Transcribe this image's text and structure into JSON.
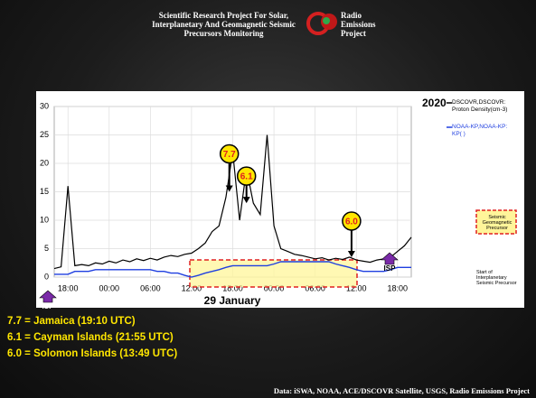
{
  "header": {
    "title": "Scientific Research Project For Solar, Interplanetary And Geomagnetic Seismic Precursors Monitoring",
    "project": "Radio Emissions Project"
  },
  "chart_data": {
    "type": "line",
    "year": "2020",
    "x_label": "29 January",
    "x": [
      0,
      1,
      2,
      3,
      4,
      5,
      6,
      7,
      8,
      9,
      10,
      11,
      12,
      13,
      14,
      15,
      16,
      17,
      18,
      19,
      20,
      21,
      22,
      23,
      24,
      25,
      26,
      27,
      28,
      29,
      30,
      31,
      32,
      33,
      34,
      35,
      36,
      37,
      38,
      39,
      40,
      41,
      42,
      43,
      44,
      45,
      46,
      47,
      48,
      49,
      50,
      51,
      52
    ],
    "xlim": [
      0,
      52
    ],
    "xticks": [
      {
        "value": 2,
        "label": "18:00"
      },
      {
        "value": 8,
        "label": "00:00"
      },
      {
        "value": 14,
        "label": "06:00"
      },
      {
        "value": 20,
        "label": "12:00"
      },
      {
        "value": 26,
        "label": "18:00"
      },
      {
        "value": 32,
        "label": "00:00"
      },
      {
        "value": 38,
        "label": "06:00"
      },
      {
        "value": 44,
        "label": "12:00"
      },
      {
        "value": 50,
        "label": "18:00"
      }
    ],
    "ylim": [
      0,
      30
    ],
    "yticks": [
      0,
      5,
      10,
      15,
      20,
      25,
      30
    ],
    "grid": true,
    "series": [
      {
        "name": "DSCOVR,DSCOVR: Proton Density(cm-3)",
        "color": "#000000",
        "values": [
          1.5,
          1.8,
          16,
          2,
          2.2,
          2,
          2.5,
          2.3,
          2.8,
          2.5,
          3,
          2.7,
          3.2,
          2.9,
          3.3,
          3,
          3.5,
          3.8,
          3.6,
          4,
          4.2,
          5,
          6,
          8,
          9,
          14,
          22,
          10,
          19,
          13,
          11,
          25,
          9,
          5,
          4.5,
          4,
          3.8,
          3.5,
          3.2,
          3.4,
          3,
          3.3,
          3.1,
          3.5,
          3,
          2.8,
          2.6,
          3,
          3.2,
          3.5,
          4.5,
          5.5,
          7
        ]
      },
      {
        "name": "NOAA-KP,NOAA-KP: KP( )",
        "color": "#1f3fe0",
        "values": [
          0.5,
          0.5,
          0.5,
          1,
          1,
          1,
          1.3,
          1.3,
          1.3,
          1.3,
          1.3,
          1.3,
          1.3,
          1.3,
          1.3,
          1,
          1,
          0.7,
          0.7,
          0.3,
          0,
          0.3,
          0.7,
          1,
          1.3,
          1.7,
          2,
          2,
          2,
          2,
          2,
          2,
          2.3,
          2.7,
          2.7,
          2.7,
          2.7,
          2.7,
          2.7,
          2.7,
          2.7,
          2.3,
          2,
          1.7,
          1.3,
          1,
          1,
          1,
          1,
          1.3,
          1.7,
          1.7,
          1.7
        ]
      }
    ],
    "annotations": [
      {
        "text": "7.7",
        "x": 25.5,
        "y": 15
      },
      {
        "text": "6.1",
        "x": 28,
        "y": 13
      },
      {
        "text": "6.0",
        "x": 43.3,
        "y": 3.5
      }
    ],
    "box_label": "Seismic Geomagnetic Precursor",
    "isp_label": "ISP",
    "isp_note": "Start of Interplanetary Seismic Precursor"
  },
  "notes": [
    "7.7 = Jamaica (19:10 UTC)",
    "6.1 = Cayman Islands (21:55 UTC)",
    "6.0 = Solomon Islands (13:49 UTC)"
  ],
  "footer": "Data: iSWA, NOAA, ACE/DSCOVR Satellite, USGS, Radio Emissions Project"
}
